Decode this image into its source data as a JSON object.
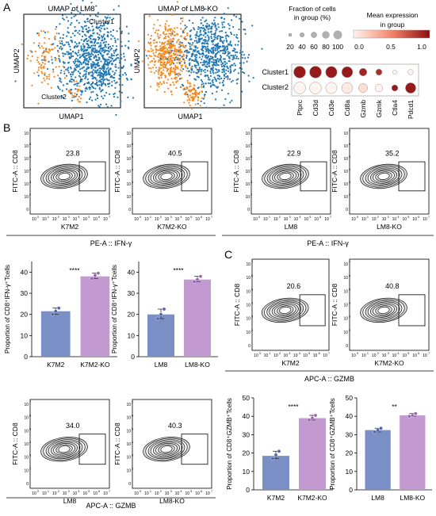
{
  "panels": {
    "A": "A",
    "B": "B",
    "C": "C"
  },
  "umap": {
    "lm8": {
      "title": "UMAP of LM8",
      "xlabel": "UMAP1",
      "ylabel": "UMAP2",
      "cluster1": "Cluster1",
      "cluster2": "Cluster2"
    },
    "lm8ko": {
      "title": "UMAP of LM8-KO",
      "xlabel": "UMAP1",
      "ylabel": "UMAP2"
    },
    "colors": {
      "cluster1": "#1f77b4",
      "cluster2": "#f5891f"
    }
  },
  "dotplot": {
    "size_legend_title_1": "Fraction of cells",
    "size_legend_title_2": "in group (%)",
    "size_ticks": [
      "20",
      "40",
      "60",
      "80",
      "100"
    ],
    "color_legend_title_1": "Mean expression",
    "color_legend_title_2": "in group",
    "color_ticks": [
      "0.0",
      "0.5",
      "1.0"
    ],
    "rows": [
      "Cluster1",
      "Cluster2"
    ],
    "genes": [
      "Ptprc",
      "Cd3d",
      "Cd3e",
      "Cd8a",
      "Gzmb",
      "Gzmk",
      "Ctla4",
      "Pdcd1"
    ],
    "fraction": [
      [
        100,
        100,
        95,
        90,
        55,
        40,
        20,
        30
      ],
      [
        100,
        100,
        95,
        90,
        70,
        55,
        40,
        85
      ]
    ],
    "expression": [
      [
        0.95,
        0.95,
        0.95,
        0.95,
        0.9,
        0.85,
        0.0,
        0.0
      ],
      [
        0.0,
        0.0,
        0.0,
        0.05,
        0.1,
        0.0,
        0.95,
        0.95
      ]
    ]
  },
  "flow": {
    "y_axis": "FITC-A :: CD8",
    "y_ticks": [
      "10",
      "10",
      "10",
      "10",
      "10",
      "10",
      "0"
    ],
    "y_exp": [
      "7",
      "6",
      "5",
      "4",
      "3",
      "2",
      ""
    ],
    "x_ticks_base": "10",
    "x_exp": [
      "0",
      "1",
      "2",
      "3",
      "4",
      "5",
      "6",
      "7"
    ],
    "b1": {
      "values": [
        "23.8",
        "40.5"
      ],
      "xlabels": [
        "K7M2",
        "K7M2-KO"
      ],
      "axis": "PE-A :: IFN-γ"
    },
    "b2": {
      "values": [
        "22.9",
        "35.2"
      ],
      "xlabels": [
        "LM8",
        "LM8-KO"
      ],
      "axis": "PE-A :: IFN-γ"
    },
    "c1": {
      "values": [
        "20.6",
        "40.8"
      ],
      "xlabels": [
        "K7M2",
        "K7M2-KO"
      ],
      "axis": "APC-A :: GZMB"
    },
    "b3": {
      "values": [
        "34.0",
        "40.3"
      ],
      "xlabels": [
        "LM8",
        "LM8-KO"
      ],
      "axis": "APC-A :: GZMB"
    }
  },
  "chart_data": [
    {
      "type": "bar",
      "ylabel": "Proportion of CD8⁺IFN-γ⁺Tcells",
      "categories": [
        "K7M2",
        "K7M2-KO"
      ],
      "values": [
        21.5,
        38
      ],
      "points": [
        [
          20,
          21.5,
          23
        ],
        [
          37,
          38.5,
          39.5
        ]
      ],
      "ylim": [
        0,
        45
      ],
      "yticks": [
        "0",
        "10",
        "20",
        "30",
        "40"
      ],
      "significance": "****",
      "colors": [
        "#7b8fc7",
        "#c39ad0"
      ]
    },
    {
      "type": "bar",
      "ylabel": "Proportion of CD8⁺IFN-γ⁺Tcells",
      "categories": [
        "LM8",
        "LM8-KO"
      ],
      "values": [
        20,
        36.5
      ],
      "points": [
        [
          18,
          20,
          22.5
        ],
        [
          35.5,
          36.5,
          38
        ]
      ],
      "ylim": [
        0,
        45
      ],
      "yticks": [
        "0",
        "10",
        "20",
        "30",
        "40"
      ],
      "significance": "****",
      "colors": [
        "#7b8fc7",
        "#c39ad0"
      ]
    },
    {
      "type": "bar",
      "ylabel": "Proportion of CD8⁺GZMB⁺Tcells",
      "categories": [
        "K7M2",
        "K7M2-KO"
      ],
      "values": [
        18.5,
        39
      ],
      "points": [
        [
          17,
          19,
          21
        ],
        [
          38,
          39,
          40.5
        ]
      ],
      "ylim": [
        0,
        50
      ],
      "yticks": [
        "0",
        "10",
        "20",
        "30",
        "40",
        "50"
      ],
      "significance": "****",
      "colors": [
        "#7b8fc7",
        "#c39ad0"
      ]
    },
    {
      "type": "bar",
      "ylabel": "Proportion of CD8⁺GZMB⁺Tcells",
      "categories": [
        "LM8",
        "LM8-KO"
      ],
      "values": [
        32.5,
        40.5
      ],
      "points": [
        [
          31.5,
          32.5,
          33.5
        ],
        [
          40,
          40.5,
          41.5
        ]
      ],
      "ylim": [
        0,
        50
      ],
      "yticks": [
        "0",
        "10",
        "20",
        "30",
        "40",
        "50"
      ],
      "significance": "**",
      "colors": [
        "#7b8fc7",
        "#c39ad0"
      ]
    }
  ]
}
